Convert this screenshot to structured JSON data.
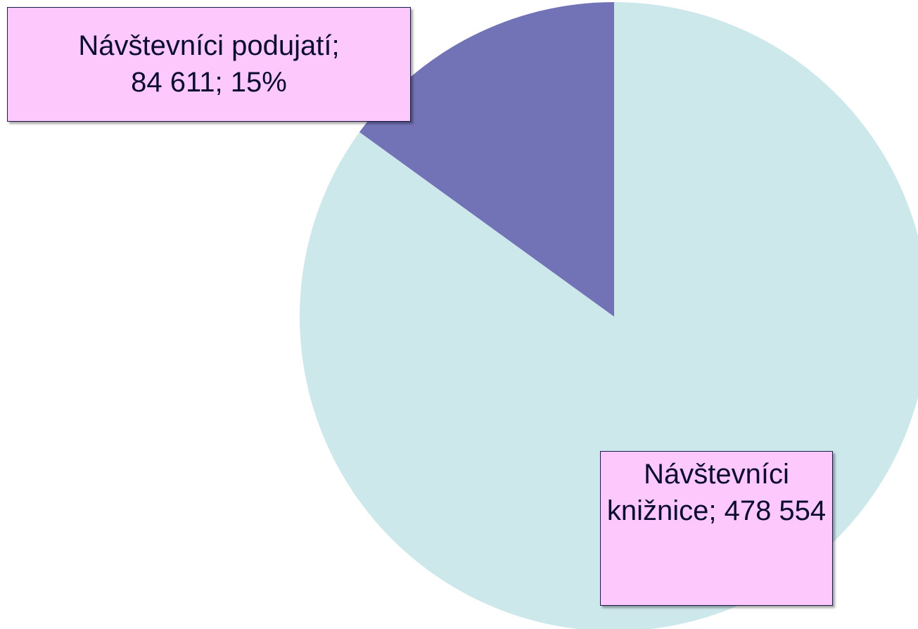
{
  "chart_data": {
    "type": "pie",
    "categories": [
      "Návštevníci knižnice",
      "Návštevníci podujatí"
    ],
    "values": [
      478554,
      84611
    ],
    "value_labels": [
      "478 554",
      "84 611"
    ],
    "percents": [
      null,
      15
    ],
    "percent_labels": [
      null,
      "15%"
    ],
    "label_separator": "; ",
    "colors": [
      "#cde8ea",
      "#7272b6"
    ],
    "start_angle": 0,
    "direction": "clockwise"
  }
}
